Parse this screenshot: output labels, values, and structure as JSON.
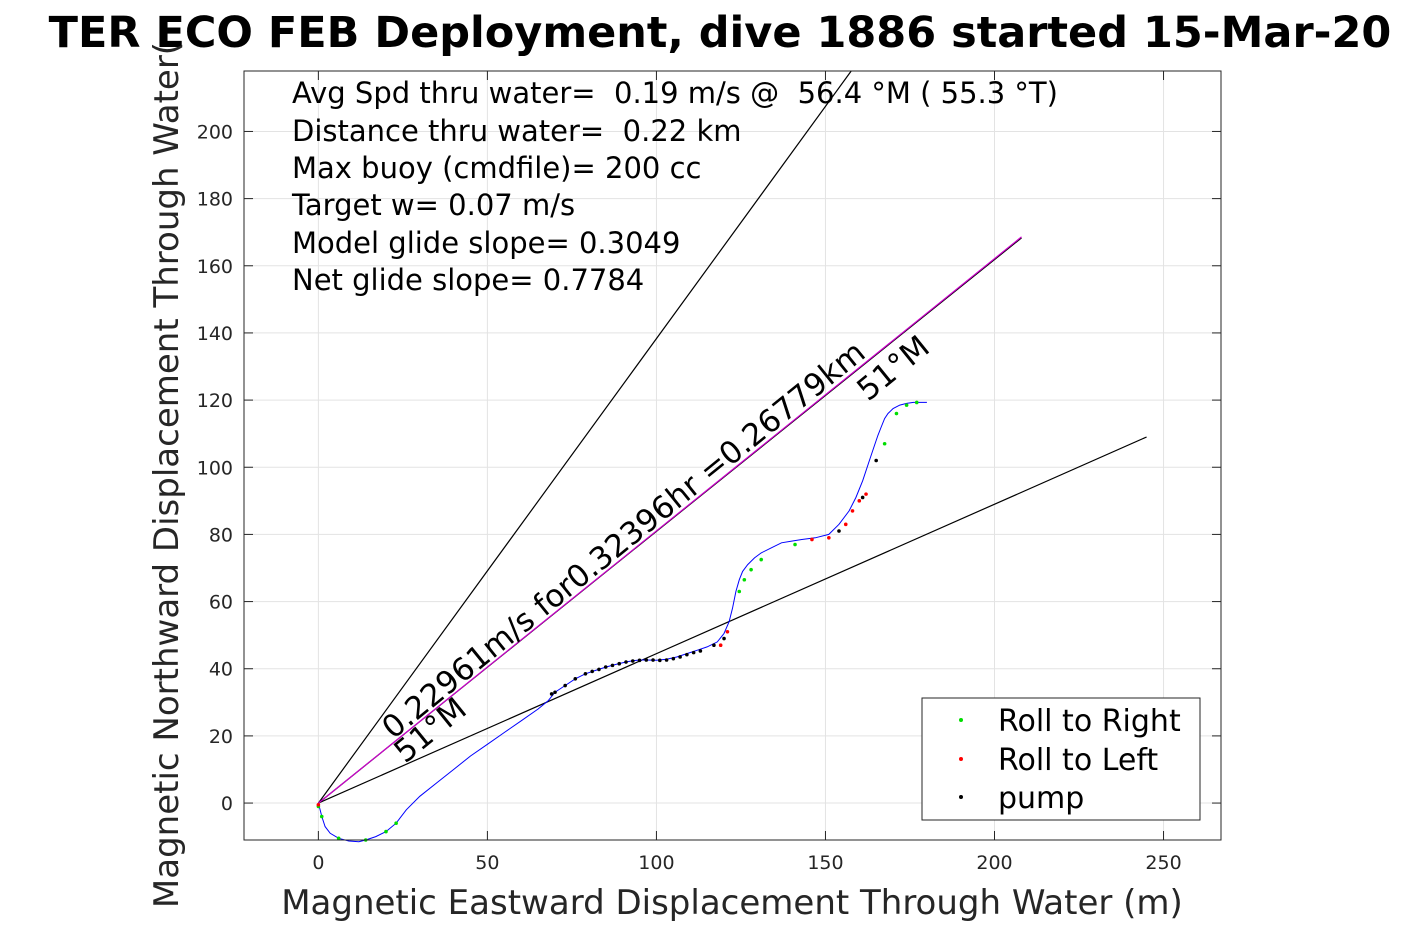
{
  "chart_data": {
    "type": "line",
    "title": "TER ECO FEB Deployment, dive 1886 started 15-Mar-20",
    "xlabel": "Magnetic Eastward Displacement Through Water (m)",
    "ylabel": "Magnetic Northward Displacement Through Water(",
    "xlim": [
      -22,
      267
    ],
    "ylim": [
      -11,
      218
    ],
    "xticks": [
      0,
      50,
      100,
      150,
      200,
      250
    ],
    "yticks": [
      0,
      20,
      40,
      60,
      80,
      100,
      120,
      140,
      160,
      180,
      200
    ],
    "grid": true,
    "info_lines": [
      "Avg Spd thru water=  0.19 m/s @  56.4 °M ( 55.3 °T)",
      "Distance thru water=  0.22 km",
      "Max buoy (cmdfile)= 200 cc",
      "Target w= 0.07 m/s",
      "Model glide slope= 0.3049",
      "Net glide slope= 0.7784"
    ],
    "annotations": {
      "speed": "0.22961m/s for0.32396hr =0.26779km",
      "heading_upper": "51°M",
      "heading_lower": "51°M"
    },
    "reference_lines": [
      {
        "color": "#000000",
        "x": [
          0,
          157.6
        ],
        "y": [
          0,
          218
        ]
      },
      {
        "color": "#000000",
        "x": [
          0,
          245
        ],
        "y": [
          0,
          109
        ]
      },
      {
        "color": "#000000",
        "x": [
          0,
          208
        ],
        "y": [
          0,
          168.3
        ]
      },
      {
        "color": "#cc00cc",
        "x": [
          0,
          208
        ],
        "y": [
          0,
          168.6
        ]
      }
    ],
    "track": {
      "color": "#0000ff",
      "x": [
        0,
        0.5,
        1,
        2,
        3.5,
        6,
        9,
        12,
        14,
        17,
        20,
        23,
        26,
        30,
        35,
        40,
        45,
        50,
        55,
        60,
        65,
        68,
        70,
        73,
        76,
        79,
        82,
        85,
        88,
        91,
        93,
        95,
        97,
        100,
        103,
        106,
        109,
        112,
        115,
        118,
        120,
        121.5,
        122.5,
        123.5,
        124.5,
        125.5,
        127,
        129,
        131,
        134,
        137,
        140,
        143,
        147,
        151,
        154,
        157,
        159,
        161,
        163,
        164.5,
        165.5,
        166.5,
        167.5,
        168.5,
        170,
        172,
        174,
        176,
        178,
        180
      ],
      "y": [
        0,
        -2,
        -4,
        -7,
        -9,
        -10.5,
        -11.3,
        -11.5,
        -11,
        -10,
        -8.5,
        -6,
        -2,
        2,
        6,
        10,
        14,
        17.5,
        21,
        24.5,
        28,
        30.5,
        33,
        35,
        37,
        38.5,
        39.5,
        40.5,
        41.3,
        42,
        42.4,
        42.6,
        42.6,
        42.5,
        42.8,
        43.5,
        44.5,
        45.5,
        46.5,
        48,
        50.5,
        54,
        58,
        63,
        66.5,
        69,
        71,
        73,
        74.5,
        76,
        77.5,
        78,
        78.5,
        79,
        80,
        83,
        87,
        91,
        96,
        102,
        106.5,
        109.5,
        112,
        114.5,
        116,
        117.5,
        118.5,
        119,
        119.3,
        119.3,
        119.3
      ]
    },
    "markers": {
      "roll_right": {
        "color": "#00dd00",
        "x": [
          0,
          1,
          6,
          14,
          20,
          23,
          124.5,
          126,
          128,
          131,
          141,
          167.5,
          171,
          174,
          177
        ],
        "y": [
          -1,
          -4,
          -10.5,
          -11,
          -8.5,
          -6,
          63,
          66.5,
          69.5,
          72.5,
          77,
          107,
          116,
          118.5,
          119.3
        ]
      },
      "roll_left": {
        "color": "#ff0000",
        "x": [
          0,
          119,
          121,
          146,
          151,
          156,
          158,
          160,
          162
        ],
        "y": [
          -0.5,
          47,
          51,
          78.5,
          79,
          83,
          87,
          90,
          92
        ]
      },
      "pump": {
        "color": "#000000",
        "x": [
          69,
          70,
          73,
          76,
          79,
          81,
          83,
          85,
          87,
          89,
          91,
          93,
          95,
          97,
          99,
          101,
          103,
          105,
          107,
          109,
          111,
          113,
          117,
          120,
          154,
          161,
          165
        ],
        "y": [
          32.5,
          33,
          35,
          37,
          38.5,
          39.2,
          39.8,
          40.5,
          41,
          41.5,
          42,
          42.3,
          42.5,
          42.6,
          42.6,
          42.5,
          42.6,
          43,
          43.5,
          44.2,
          44.8,
          45.3,
          47,
          49,
          81,
          91,
          102
        ]
      }
    },
    "legend": {
      "placement": "bottom-right",
      "entries": [
        {
          "label": "Roll to Right",
          "color": "#00dd00"
        },
        {
          "label": "Roll to Left",
          "color": "#ff0000"
        },
        {
          "label": "pump",
          "color": "#000000"
        }
      ]
    }
  }
}
